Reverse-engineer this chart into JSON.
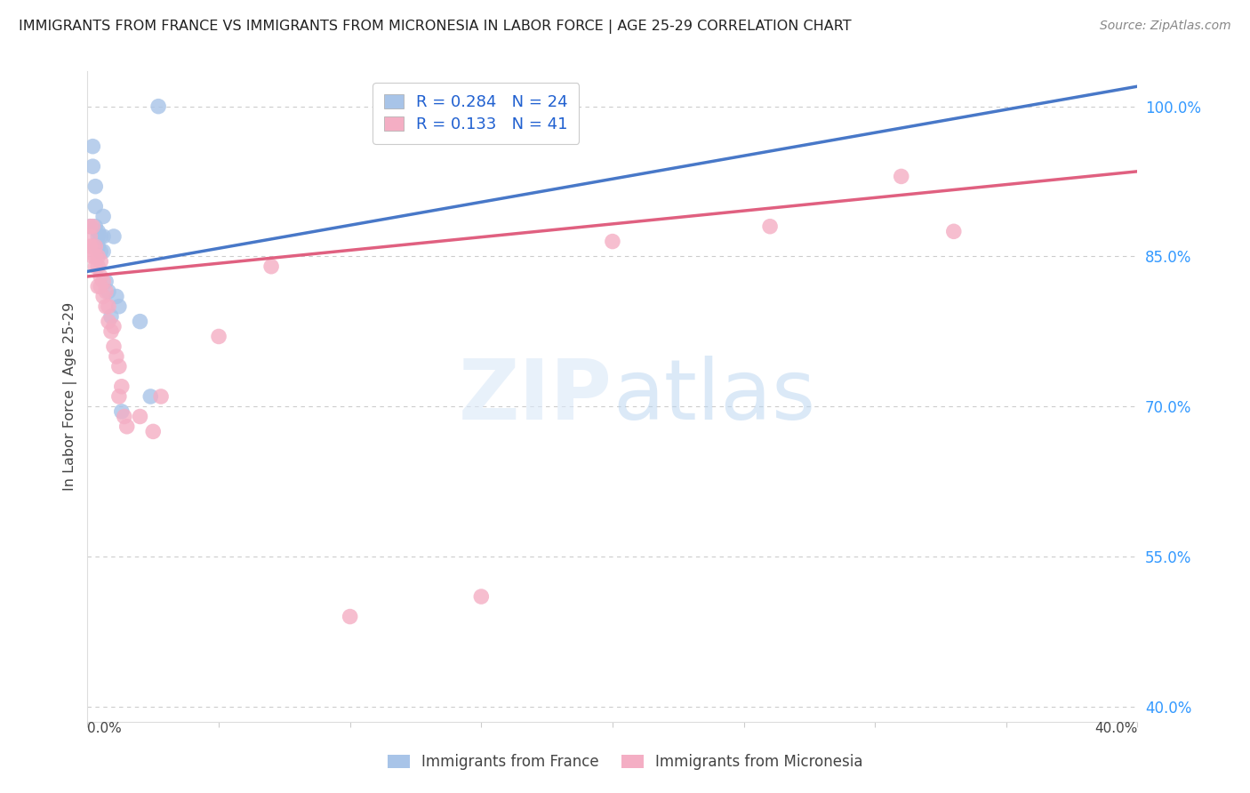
{
  "title": "IMMIGRANTS FROM FRANCE VS IMMIGRANTS FROM MICRONESIA IN LABOR FORCE | AGE 25-29 CORRELATION CHART",
  "source": "Source: ZipAtlas.com",
  "ylabel": "In Labor Force | Age 25-29",
  "ytick_labels": [
    "100.0%",
    "85.0%",
    "70.0%",
    "55.0%",
    "40.0%"
  ],
  "ytick_values": [
    1.0,
    0.85,
    0.7,
    0.55,
    0.4
  ],
  "xlim": [
    0.0,
    0.4
  ],
  "ylim": [
    0.385,
    1.035
  ],
  "france_R": 0.284,
  "france_N": 24,
  "micronesia_R": 0.133,
  "micronesia_N": 41,
  "france_color": "#a8c4e8",
  "micronesia_color": "#f4aec4",
  "france_line_color": "#4878c8",
  "micronesia_line_color": "#e06080",
  "background_color": "#ffffff",
  "grid_color": "#cccccc",
  "france_x": [
    0.001,
    0.002,
    0.002,
    0.003,
    0.003,
    0.003,
    0.004,
    0.004,
    0.004,
    0.005,
    0.005,
    0.006,
    0.006,
    0.006,
    0.007,
    0.008,
    0.009,
    0.01,
    0.011,
    0.012,
    0.013,
    0.02,
    0.024,
    0.027
  ],
  "france_y": [
    0.88,
    0.94,
    0.96,
    0.92,
    0.9,
    0.88,
    0.875,
    0.87,
    0.86,
    0.87,
    0.855,
    0.89,
    0.87,
    0.855,
    0.825,
    0.815,
    0.79,
    0.87,
    0.81,
    0.8,
    0.695,
    0.785,
    0.71,
    1.0
  ],
  "micronesia_x": [
    0.001,
    0.001,
    0.001,
    0.002,
    0.002,
    0.002,
    0.003,
    0.003,
    0.003,
    0.004,
    0.004,
    0.004,
    0.005,
    0.005,
    0.005,
    0.006,
    0.006,
    0.007,
    0.007,
    0.008,
    0.008,
    0.009,
    0.01,
    0.01,
    0.011,
    0.012,
    0.012,
    0.013,
    0.014,
    0.015,
    0.02,
    0.025,
    0.028,
    0.05,
    0.07,
    0.1,
    0.15,
    0.2,
    0.26,
    0.31,
    0.33
  ],
  "micronesia_y": [
    0.88,
    0.87,
    0.86,
    0.88,
    0.86,
    0.85,
    0.86,
    0.85,
    0.84,
    0.85,
    0.84,
    0.82,
    0.845,
    0.83,
    0.82,
    0.825,
    0.81,
    0.815,
    0.8,
    0.8,
    0.785,
    0.775,
    0.78,
    0.76,
    0.75,
    0.74,
    0.71,
    0.72,
    0.69,
    0.68,
    0.69,
    0.675,
    0.71,
    0.77,
    0.84,
    0.49,
    0.51,
    0.865,
    0.88,
    0.93,
    0.875
  ],
  "france_line_x0": 0.0,
  "france_line_y0": 0.835,
  "france_line_x1": 0.4,
  "france_line_y1": 1.02,
  "micro_line_x0": 0.0,
  "micro_line_y0": 0.83,
  "micro_line_x1": 0.4,
  "micro_line_y1": 0.935
}
